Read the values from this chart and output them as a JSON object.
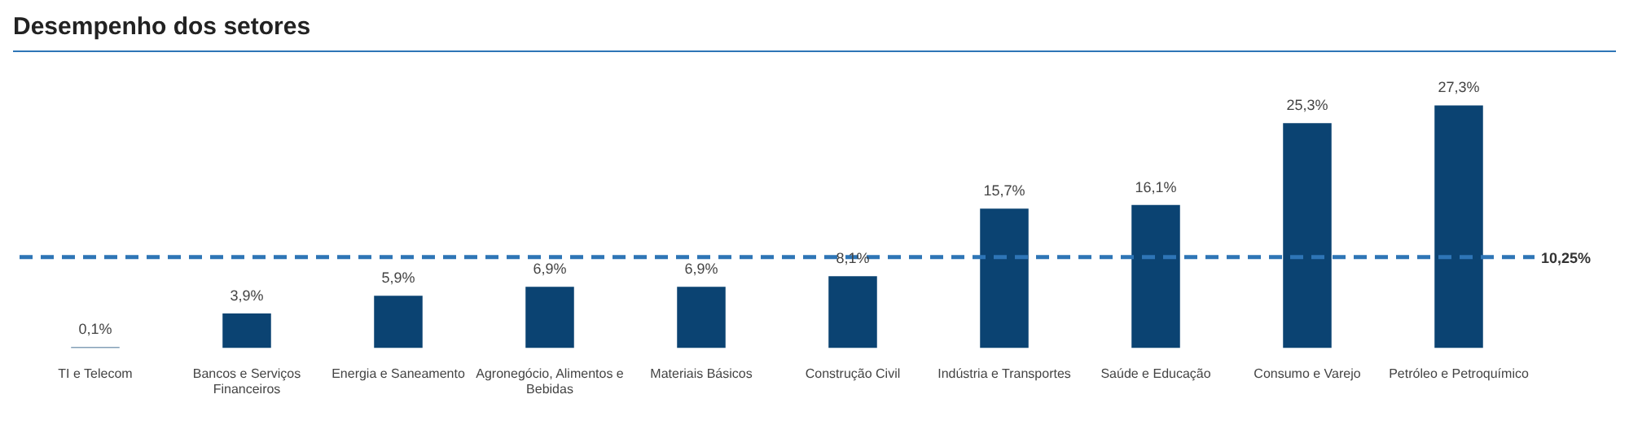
{
  "chart_data": {
    "type": "bar",
    "title": "Desempenho dos setores",
    "categories": [
      "TI e Telecom",
      "Bancos e Serviços Financeiros",
      "Energia e Saneamento",
      "Agronegócio, Alimentos e Bebidas",
      "Materiais Básicos",
      "Construção Civil",
      "Indústria e Transportes",
      "Saúde e Educação",
      "Consumo e Varejo",
      "Petróleo e Petroquímico"
    ],
    "values": [
      0.1,
      3.9,
      5.9,
      6.9,
      6.9,
      8.1,
      15.7,
      16.1,
      25.3,
      27.3
    ],
    "value_labels": [
      "0,1%",
      "3,9%",
      "5,9%",
      "6,9%",
      "6,9%",
      "8,1%",
      "15,7%",
      "16,1%",
      "25,3%",
      "27,3%"
    ],
    "color": "#0b4372",
    "ref_lines": [
      {
        "axis": "y",
        "value": 10.25,
        "label": "10,25%",
        "color": "#2e75b6",
        "line_style": "dashed"
      }
    ],
    "grid": false,
    "legend": false,
    "tick_labels": "x"
  }
}
